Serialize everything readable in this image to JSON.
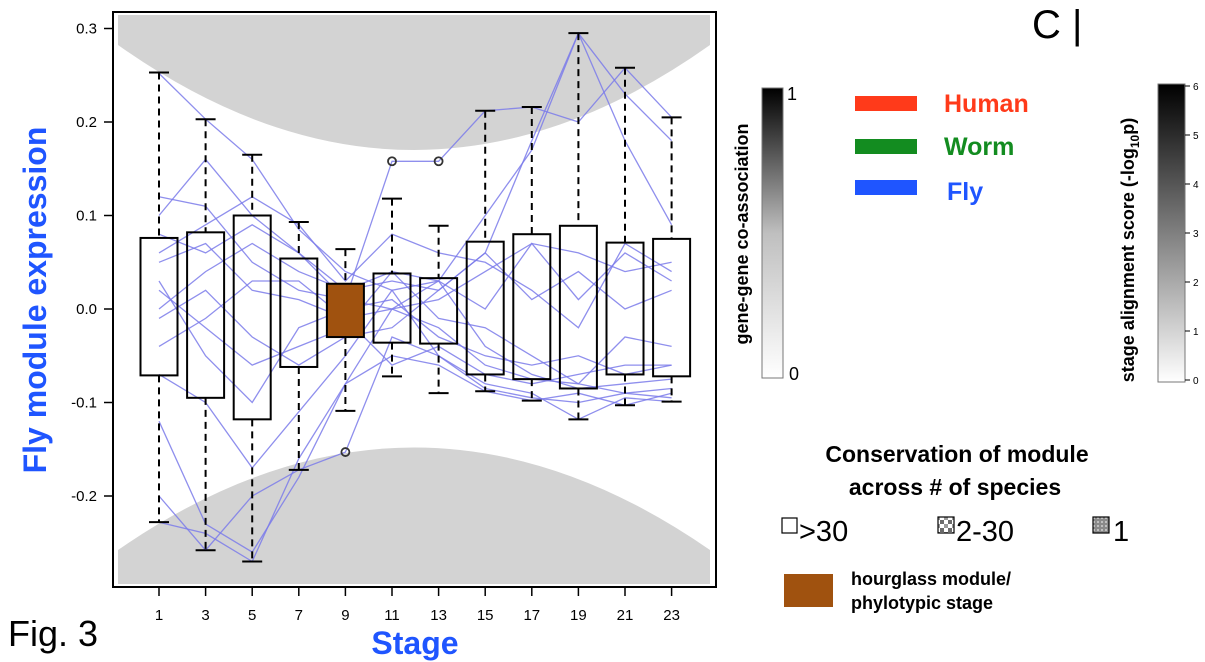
{
  "figure": {
    "label": "Fig. 3",
    "panel_label": "C |"
  },
  "chart_data": {
    "type": "boxplot",
    "xlabel": "Stage",
    "ylabel": "Fly module expression",
    "ylim": [
      -0.29,
      0.32
    ],
    "yticks": [
      -0.2,
      -0.1,
      0.0,
      0.1,
      0.2,
      0.3
    ],
    "ytick_labels": [
      "-0.2",
      "-0.1",
      "0.0",
      "0.1",
      "0.2",
      "0.3"
    ],
    "categories": [
      "1",
      "3",
      "5",
      "7",
      "9",
      "11",
      "13",
      "15",
      "17",
      "19",
      "21",
      "23"
    ],
    "boxes": [
      {
        "q1": -0.071,
        "q3": 0.076,
        "wlo": -0.228,
        "whi": 0.253
      },
      {
        "q1": -0.095,
        "q3": 0.082,
        "wlo": -0.258,
        "whi": 0.203
      },
      {
        "q1": -0.118,
        "q3": 0.1,
        "wlo": -0.27,
        "whi": 0.165
      },
      {
        "q1": -0.062,
        "q3": 0.054,
        "wlo": -0.172,
        "whi": 0.093
      },
      {
        "q1": -0.03,
        "q3": 0.027,
        "wlo": -0.109,
        "whi": 0.064
      },
      {
        "q1": -0.036,
        "q3": 0.038,
        "wlo": -0.072,
        "whi": 0.118
      },
      {
        "q1": -0.037,
        "q3": 0.033,
        "wlo": -0.09,
        "whi": 0.089
      },
      {
        "q1": -0.07,
        "q3": 0.072,
        "wlo": -0.088,
        "whi": 0.212
      },
      {
        "q1": -0.075,
        "q3": 0.08,
        "wlo": -0.098,
        "whi": 0.216
      },
      {
        "q1": -0.085,
        "q3": 0.089,
        "wlo": -0.118,
        "whi": 0.295
      },
      {
        "q1": -0.07,
        "q3": 0.071,
        "wlo": -0.103,
        "whi": 0.258
      },
      {
        "q1": -0.072,
        "q3": 0.075,
        "wlo": -0.099,
        "whi": 0.205
      }
    ],
    "highlight_box_index": 4,
    "outliers": [
      {
        "stage": "9",
        "value": -0.153
      },
      {
        "stage": "11",
        "value": 0.158
      },
      {
        "stage": "13",
        "value": 0.158
      }
    ],
    "series": [
      {
        "values": [
          0.252,
          0.203,
          0.16,
          0.085,
          0.04,
          0.02,
          0.03,
          0.1,
          0.17,
          0.295,
          0.23,
          0.18
        ]
      },
      {
        "values": [
          0.12,
          0.11,
          0.05,
          0.02,
          0.01,
          0.0,
          -0.02,
          -0.06,
          -0.075,
          -0.08,
          -0.09,
          -0.095
        ]
      },
      {
        "values": [
          0.08,
          0.06,
          0.09,
          0.06,
          0.02,
          0.03,
          0.02,
          0.06,
          0.18,
          0.295,
          0.18,
          0.09
        ]
      },
      {
        "values": [
          0.05,
          0.07,
          0.02,
          0.01,
          -0.01,
          0.0,
          0.01,
          0.04,
          0.07,
          0.06,
          0.04,
          0.05
        ]
      },
      {
        "values": [
          0.02,
          -0.02,
          -0.06,
          -0.04,
          -0.02,
          0.04,
          0.03,
          0.0,
          0.07,
          0.01,
          0.06,
          0.03
        ]
      },
      {
        "values": [
          0.0,
          0.04,
          0.07,
          0.04,
          0.02,
          0.04,
          -0.01,
          -0.02,
          -0.05,
          -0.08,
          -0.03,
          -0.04
        ]
      },
      {
        "values": [
          -0.04,
          -0.01,
          0.03,
          0.03,
          -0.01,
          -0.06,
          -0.04,
          -0.07,
          -0.08,
          -0.07,
          -0.06,
          -0.06
        ]
      },
      {
        "values": [
          -0.07,
          -0.1,
          -0.17,
          -0.11,
          -0.05,
          0.02,
          -0.05,
          -0.085,
          -0.095,
          -0.1,
          -0.09,
          -0.085
        ]
      },
      {
        "values": [
          -0.12,
          -0.23,
          -0.26,
          -0.18,
          -0.08,
          0.0,
          0.03,
          -0.04,
          -0.07,
          -0.085,
          -0.08,
          -0.075
        ]
      },
      {
        "values": [
          -0.2,
          -0.258,
          -0.2,
          -0.172,
          -0.153,
          -0.03,
          -0.05,
          -0.08,
          -0.09,
          -0.118,
          -0.095,
          -0.099
        ]
      },
      {
        "values": [
          -0.228,
          -0.24,
          -0.27,
          -0.16,
          -0.08,
          -0.05,
          -0.06,
          -0.088,
          -0.098,
          -0.09,
          -0.103,
          -0.09
        ]
      },
      {
        "values": [
          0.1,
          0.16,
          0.1,
          0.06,
          0.01,
          0.158,
          0.158,
          0.212,
          0.216,
          0.2,
          0.258,
          0.205
        ]
      },
      {
        "values": [
          0.06,
          0.09,
          0.12,
          0.09,
          0.03,
          0.08,
          0.06,
          0.05,
          0.02,
          -0.02,
          0.07,
          0.04
        ]
      },
      {
        "values": [
          -0.01,
          0.02,
          -0.03,
          -0.06,
          -0.03,
          -0.02,
          0.02,
          0.06,
          0.01,
          0.04,
          0.0,
          0.02
        ]
      },
      {
        "values": [
          0.03,
          -0.05,
          -0.1,
          -0.02,
          0.0,
          0.01,
          -0.03,
          -0.05,
          -0.06,
          -0.05,
          -0.07,
          -0.06
        ]
      }
    ],
    "line_color": "#7b7bea",
    "highlight_color": "#a0520f",
    "band_color": "#d3d3d3",
    "grid": false
  },
  "colorbars": [
    {
      "label": "gene-gene co-association",
      "min_label": "0",
      "max_label": "1"
    },
    {
      "label": "stage alignment score (-log",
      "label_sub": "10",
      "label_end": "p)",
      "ticks": [
        "0",
        "1",
        "2",
        "3",
        "4",
        "5",
        "6"
      ]
    }
  ],
  "legend": {
    "species": [
      {
        "name": "Human",
        "color": "#ff3a1a"
      },
      {
        "name": "Worm",
        "color": "#138c20"
      },
      {
        "name": "Fly",
        "color": "#1f55ff"
      }
    ],
    "conservation_title_1": "Conservation of module",
    "conservation_title_2": "across # of species",
    "conservation_items": [
      ">30",
      "2-30",
      "1"
    ],
    "hourglass_label_1": "hourglass module/",
    "hourglass_label_2": "phylotypic stage"
  }
}
